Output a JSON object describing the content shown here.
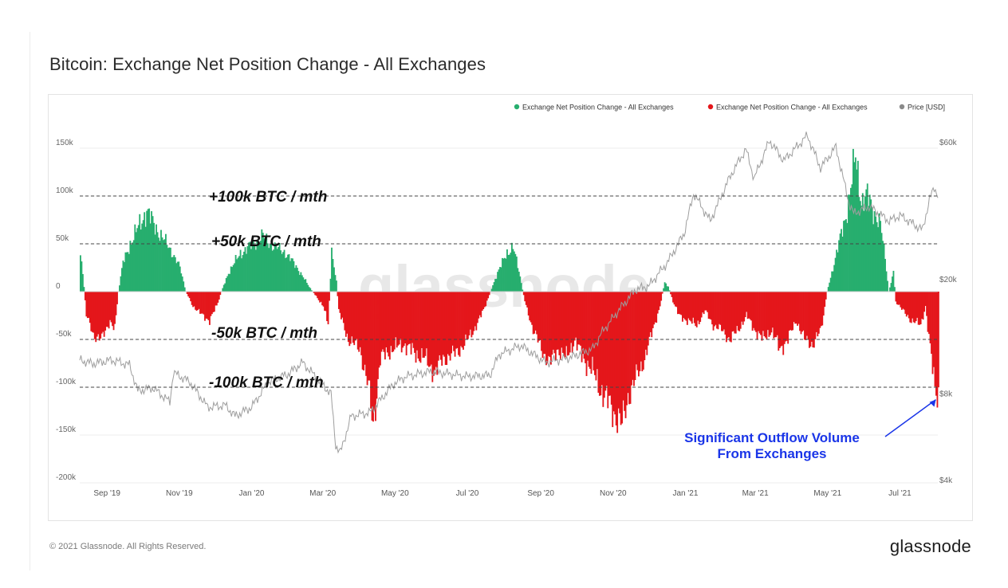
{
  "title": "Bitcoin: Exchange Net Position Change - All Exchanges",
  "footer": {
    "copyright": "© 2021 Glassnode. All Rights Reserved.",
    "logo": "glassnode"
  },
  "watermark": "glassnode",
  "colors": {
    "positive": "#27ae6e",
    "negative": "#e4161b",
    "price": "#9e9e9e",
    "annotation": "#1a35e8"
  },
  "chart_data": {
    "type": "bar",
    "title": "Bitcoin: Exchange Net Position Change - All Exchanges",
    "legend": {
      "placement": "top-right",
      "items": [
        {
          "label": "Exchange Net Position Change - All Exchanges",
          "color": "#27ae6e"
        },
        {
          "label": "Exchange Net Position Change - All Exchanges",
          "color": "#e4161b"
        },
        {
          "label": "Price [USD]",
          "color": "#8a8a8a"
        }
      ]
    },
    "y_left": {
      "min": -200000,
      "max": 180000,
      "ticks": [
        150000,
        100000,
        50000,
        0,
        -50000,
        -100000,
        -150000,
        -200000
      ],
      "tick_labels": [
        "150k",
        "100k",
        "50k",
        "0",
        "-50k",
        "-100k",
        "-150k",
        "-200k"
      ]
    },
    "y_right": {
      "scale": "log",
      "ticks": [
        60000,
        20000,
        8000,
        4000
      ],
      "tick_labels": [
        "$60k",
        "$20k",
        "$8k",
        "$4k"
      ]
    },
    "x_axis": {
      "start": "2019-08-09",
      "end": "2021-08-02",
      "ticks": [
        "2019-09-01",
        "2019-11-01",
        "2020-01-01",
        "2020-03-01",
        "2020-05-01",
        "2020-07-01",
        "2020-09-01",
        "2020-11-01",
        "2021-01-01",
        "2021-03-01",
        "2021-05-01",
        "2021-07-01"
      ],
      "tick_labels": [
        "Sep '19",
        "Nov '19",
        "Jan '20",
        "Mar '20",
        "May '20",
        "Jul '20",
        "Sep '20",
        "Nov '20",
        "Jan '21",
        "Mar '21",
        "May '21",
        "Jul '21"
      ]
    },
    "reference_lines": [
      {
        "value": 100000,
        "label": "+100k BTC / mth"
      },
      {
        "value": 50000,
        "label": "+50k BTC / mth"
      },
      {
        "value": -50000,
        "label": "-50k BTC / mth"
      },
      {
        "value": -100000,
        "label": "-100k BTC / mth"
      }
    ],
    "annotation": {
      "text": [
        "Significant Outflow Volume",
        "From Exchanges"
      ],
      "date": "2021-07-30",
      "value": -108000
    },
    "net_position_keypoints": [
      [
        "2019-08-09",
        40000
      ],
      [
        "2019-08-12",
        5000
      ],
      [
        "2019-08-14",
        -25000
      ],
      [
        "2019-08-20",
        -45000
      ],
      [
        "2019-08-27",
        -50000
      ],
      [
        "2019-09-03",
        -30000
      ],
      [
        "2019-09-07",
        -40000
      ],
      [
        "2019-09-10",
        0
      ],
      [
        "2019-09-14",
        30000
      ],
      [
        "2019-09-20",
        50000
      ],
      [
        "2019-09-28",
        70000
      ],
      [
        "2019-10-04",
        85000
      ],
      [
        "2019-10-10",
        70000
      ],
      [
        "2019-10-18",
        55000
      ],
      [
        "2019-10-26",
        40000
      ],
      [
        "2019-11-01",
        25000
      ],
      [
        "2019-11-06",
        0
      ],
      [
        "2019-11-12",
        -15000
      ],
      [
        "2019-11-20",
        -25000
      ],
      [
        "2019-11-26",
        -30000
      ],
      [
        "2019-12-02",
        -15000
      ],
      [
        "2019-12-06",
        0
      ],
      [
        "2019-12-12",
        20000
      ],
      [
        "2019-12-22",
        40000
      ],
      [
        "2020-01-02",
        50000
      ],
      [
        "2020-01-10",
        58000
      ],
      [
        "2020-01-18",
        48000
      ],
      [
        "2020-01-28",
        42000
      ],
      [
        "2020-02-08",
        25000
      ],
      [
        "2020-02-18",
        5000
      ],
      [
        "2020-02-24",
        -5000
      ],
      [
        "2020-03-01",
        -15000
      ],
      [
        "2020-03-05",
        -35000
      ],
      [
        "2020-03-08",
        40000
      ],
      [
        "2020-03-12",
        10000
      ],
      [
        "2020-03-14",
        -20000
      ],
      [
        "2020-03-22",
        -50000
      ],
      [
        "2020-04-01",
        -60000
      ],
      [
        "2020-04-08",
        -100000
      ],
      [
        "2020-04-12",
        -140000
      ],
      [
        "2020-04-18",
        -70000
      ],
      [
        "2020-04-28",
        -60000
      ],
      [
        "2020-05-08",
        -55000
      ],
      [
        "2020-05-18",
        -65000
      ],
      [
        "2020-05-26",
        -70000
      ],
      [
        "2020-06-03",
        -85000
      ],
      [
        "2020-06-10",
        -70000
      ],
      [
        "2020-06-20",
        -65000
      ],
      [
        "2020-06-28",
        -55000
      ],
      [
        "2020-07-06",
        -40000
      ],
      [
        "2020-07-14",
        -20000
      ],
      [
        "2020-07-20",
        0
      ],
      [
        "2020-07-26",
        20000
      ],
      [
        "2020-08-03",
        40000
      ],
      [
        "2020-08-08",
        48000
      ],
      [
        "2020-08-14",
        15000
      ],
      [
        "2020-08-18",
        -10000
      ],
      [
        "2020-08-25",
        -40000
      ],
      [
        "2020-09-01",
        -60000
      ],
      [
        "2020-09-08",
        -75000
      ],
      [
        "2020-09-15",
        -60000
      ],
      [
        "2020-09-22",
        -70000
      ],
      [
        "2020-09-29",
        -50000
      ],
      [
        "2020-10-06",
        -70000
      ],
      [
        "2020-10-13",
        -80000
      ],
      [
        "2020-10-20",
        -100000
      ],
      [
        "2020-10-27",
        -115000
      ],
      [
        "2020-11-03",
        -130000
      ],
      [
        "2020-11-08",
        -140000
      ],
      [
        "2020-11-13",
        -110000
      ],
      [
        "2020-11-20",
        -90000
      ],
      [
        "2020-11-27",
        -70000
      ],
      [
        "2020-12-04",
        -40000
      ],
      [
        "2020-12-10",
        -15000
      ],
      [
        "2020-12-14",
        10000
      ],
      [
        "2020-12-17",
        5000
      ],
      [
        "2020-12-21",
        -10000
      ],
      [
        "2020-12-26",
        -25000
      ],
      [
        "2021-01-02",
        -30000
      ],
      [
        "2021-01-10",
        -35000
      ],
      [
        "2021-01-17",
        -20000
      ],
      [
        "2021-01-24",
        -35000
      ],
      [
        "2021-01-31",
        -40000
      ],
      [
        "2021-02-07",
        -50000
      ],
      [
        "2021-02-14",
        -40000
      ],
      [
        "2021-02-21",
        -25000
      ],
      [
        "2021-02-28",
        -40000
      ],
      [
        "2021-03-07",
        -50000
      ],
      [
        "2021-03-14",
        -40000
      ],
      [
        "2021-03-21",
        -60000
      ],
      [
        "2021-03-28",
        -50000
      ],
      [
        "2021-04-04",
        -30000
      ],
      [
        "2021-04-11",
        -50000
      ],
      [
        "2021-04-18",
        -55000
      ],
      [
        "2021-04-25",
        -40000
      ],
      [
        "2021-04-30",
        0
      ],
      [
        "2021-05-04",
        20000
      ],
      [
        "2021-05-10",
        50000
      ],
      [
        "2021-05-16",
        80000
      ],
      [
        "2021-05-20",
        110000
      ],
      [
        "2021-05-24",
        140000
      ],
      [
        "2021-05-29",
        95000
      ],
      [
        "2021-06-03",
        100000
      ],
      [
        "2021-06-08",
        85000
      ],
      [
        "2021-06-14",
        70000
      ],
      [
        "2021-06-18",
        35000
      ],
      [
        "2021-06-21",
        0
      ],
      [
        "2021-06-25",
        20000
      ],
      [
        "2021-06-27",
        -10000
      ],
      [
        "2021-07-03",
        -20000
      ],
      [
        "2021-07-10",
        -30000
      ],
      [
        "2021-07-18",
        -35000
      ],
      [
        "2021-07-22",
        -15000
      ],
      [
        "2021-07-26",
        -60000
      ],
      [
        "2021-07-30",
        -100000
      ],
      [
        "2021-08-02",
        -108000
      ]
    ],
    "price_keypoints": [
      [
        "2019-08-09",
        10500
      ],
      [
        "2019-08-20",
        10200
      ],
      [
        "2019-09-05",
        10500
      ],
      [
        "2019-09-20",
        10100
      ],
      [
        "2019-09-27",
        8200
      ],
      [
        "2019-10-10",
        8400
      ],
      [
        "2019-10-24",
        7500
      ],
      [
        "2019-10-27",
        9500
      ],
      [
        "2019-11-10",
        8800
      ],
      [
        "2019-11-25",
        7200
      ],
      [
        "2019-12-10",
        7300
      ],
      [
        "2019-12-18",
        6700
      ],
      [
        "2020-01-01",
        7200
      ],
      [
        "2020-01-15",
        8800
      ],
      [
        "2020-02-01",
        9400
      ],
      [
        "2020-02-13",
        10300
      ],
      [
        "2020-02-26",
        9000
      ],
      [
        "2020-03-08",
        8000
      ],
      [
        "2020-03-12",
        5300
      ],
      [
        "2020-03-16",
        5000
      ],
      [
        "2020-03-25",
        6700
      ],
      [
        "2020-04-10",
        6900
      ],
      [
        "2020-04-30",
        8700
      ],
      [
        "2020-05-10",
        9200
      ],
      [
        "2020-06-01",
        9600
      ],
      [
        "2020-06-15",
        9400
      ],
      [
        "2020-07-01",
        9200
      ],
      [
        "2020-07-20",
        9300
      ],
      [
        "2020-07-28",
        11000
      ],
      [
        "2020-08-15",
        11800
      ],
      [
        "2020-09-05",
        10300
      ],
      [
        "2020-09-25",
        10700
      ],
      [
        "2020-10-15",
        11500
      ],
      [
        "2020-10-22",
        13000
      ],
      [
        "2020-11-05",
        15500
      ],
      [
        "2020-11-20",
        18500
      ],
      [
        "2020-12-01",
        19000
      ],
      [
        "2020-12-17",
        23000
      ],
      [
        "2020-12-31",
        29000
      ],
      [
        "2021-01-08",
        40000
      ],
      [
        "2021-01-22",
        32000
      ],
      [
        "2021-02-08",
        46000
      ],
      [
        "2021-02-21",
        57000
      ],
      [
        "2021-02-28",
        45000
      ],
      [
        "2021-03-13",
        61000
      ],
      [
        "2021-03-25",
        52000
      ],
      [
        "2021-04-14",
        63500
      ],
      [
        "2021-04-25",
        49000
      ],
      [
        "2021-05-08",
        58000
      ],
      [
        "2021-05-19",
        37000
      ],
      [
        "2021-05-23",
        34000
      ],
      [
        "2021-06-05",
        36000
      ],
      [
        "2021-06-22",
        32000
      ],
      [
        "2021-07-01",
        33500
      ],
      [
        "2021-07-20",
        29800
      ],
      [
        "2021-07-26",
        38000
      ],
      [
        "2021-07-30",
        42000
      ],
      [
        "2021-08-02",
        39500
      ]
    ]
  }
}
